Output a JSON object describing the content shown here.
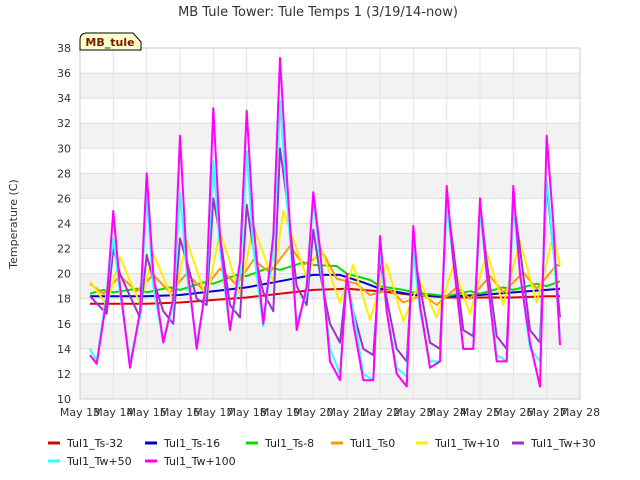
{
  "chart_data": {
    "type": "line",
    "title": "MB Tule Tower: Tule Temps 1 (3/19/14-now)",
    "ylabel": "Temperature (C)",
    "xlabel": "",
    "station_tag": "MB_tule",
    "ylim": [
      10,
      38
    ],
    "yticks": [
      10,
      12,
      14,
      16,
      18,
      20,
      22,
      24,
      26,
      28,
      30,
      32,
      34,
      36,
      38
    ],
    "xlim": [
      13,
      28
    ],
    "xticks": [
      "May 13",
      "May 14",
      "May 15",
      "May 16",
      "May 17",
      "May 18",
      "May 19",
      "May 20",
      "May 21",
      "May 22",
      "May 23",
      "May 24",
      "May 25",
      "May 26",
      "May 27",
      "May 28"
    ],
    "grid": true,
    "banded_background": true,
    "legend_position": "bottom",
    "series": [
      {
        "name": "Tul1_Ts-32",
        "color": "#dd0000",
        "x": [
          13.3,
          14,
          15,
          16,
          17,
          18,
          19,
          20,
          21,
          22,
          23,
          24,
          25,
          26,
          27,
          27.4
        ],
        "y": [
          17.6,
          17.6,
          17.6,
          17.7,
          17.9,
          18.1,
          18.4,
          18.7,
          18.8,
          18.6,
          18.3,
          18.1,
          18.1,
          18.1,
          18.2,
          18.2
        ]
      },
      {
        "name": "Tul1_Ts-16",
        "color": "#0000cc",
        "x": [
          13.3,
          14,
          15,
          16,
          17,
          18,
          19,
          20,
          20.8,
          21.5,
          22,
          23,
          24,
          25,
          26,
          27,
          27.4
        ],
        "y": [
          18.2,
          18.2,
          18.2,
          18.3,
          18.6,
          18.9,
          19.4,
          19.9,
          19.9,
          19.3,
          18.8,
          18.3,
          18.2,
          18.3,
          18.5,
          18.7,
          18.8
        ]
      },
      {
        "name": "Tul1_Ts-8",
        "color": "#00dd00",
        "x": [
          13.3,
          13.7,
          14,
          14.7,
          15,
          15.7,
          16,
          16.7,
          17,
          17.7,
          18,
          18.7,
          19,
          19.7,
          20,
          20.7,
          21,
          21.7,
          22,
          22.7,
          23,
          23.7,
          24,
          24.7,
          25,
          25.7,
          26,
          26.7,
          27,
          27.4
        ],
        "y": [
          18.4,
          18.7,
          18.5,
          18.8,
          18.5,
          18.9,
          18.7,
          19.3,
          19.2,
          19.9,
          19.8,
          20.5,
          20.3,
          20.9,
          20.7,
          20.6,
          20.0,
          19.5,
          19.0,
          18.7,
          18.5,
          18.3,
          18.2,
          18.6,
          18.4,
          18.9,
          18.7,
          19.2,
          19.0,
          19.4
        ]
      },
      {
        "name": "Tul1_Ts0",
        "color": "#ff9900",
        "x": [
          13.3,
          13.7,
          14.2,
          14.7,
          15.2,
          15.7,
          16.2,
          16.7,
          17.2,
          17.7,
          18.2,
          18.7,
          19.3,
          19.7,
          20.3,
          20.7,
          21.3,
          21.7,
          22.3,
          22.7,
          23.3,
          23.7,
          24.3,
          24.7,
          25.3,
          25.7,
          26.3,
          26.7,
          27.3,
          27.4
        ],
        "y": [
          19.2,
          18.4,
          19.8,
          18.6,
          19.9,
          18.5,
          20.0,
          18.7,
          20.4,
          19.1,
          21.1,
          20.1,
          22.2,
          20.7,
          21.6,
          19.6,
          19.2,
          18.3,
          18.7,
          17.7,
          18.3,
          17.5,
          18.9,
          18.0,
          19.8,
          18.5,
          20.1,
          18.8,
          20.7,
          20.6
        ]
      },
      {
        "name": "Tul1_Tw+10",
        "color": "#ffee00",
        "x": [
          13.3,
          13.8,
          14.2,
          14.8,
          15.2,
          15.8,
          16.2,
          16.8,
          17.2,
          17.8,
          18.2,
          18.8,
          19.1,
          19.8,
          20.2,
          20.8,
          21.2,
          21.7,
          22.2,
          22.7,
          23.2,
          23.7,
          24.2,
          24.7,
          25.2,
          25.7,
          26.2,
          26.7,
          27.2,
          27.4
        ],
        "y": [
          19.4,
          17.5,
          21.3,
          17.6,
          21.6,
          17.8,
          22.6,
          18.0,
          23.4,
          18.3,
          23.8,
          19.4,
          25.0,
          19.7,
          22.2,
          17.7,
          20.7,
          16.3,
          20.8,
          16.2,
          19.4,
          16.5,
          20.6,
          16.8,
          21.7,
          17.5,
          22.6,
          17.7,
          23.0,
          20.7
        ]
      },
      {
        "name": "Tul1_Tw+30",
        "color": "#9933cc",
        "x": [
          13.3,
          13.8,
          14.0,
          14.2,
          14.5,
          14.8,
          15.0,
          15.2,
          15.5,
          15.8,
          16.0,
          16.2,
          16.5,
          16.8,
          17.0,
          17.2,
          17.5,
          17.8,
          18.0,
          18.2,
          18.5,
          18.8,
          19.0,
          19.2,
          19.5,
          19.8,
          20.0,
          20.2,
          20.5,
          20.8,
          21.0,
          21.2,
          21.5,
          21.8,
          22.0,
          22.2,
          22.5,
          22.8,
          23.0,
          23.2,
          23.5,
          23.8,
          24.0,
          24.2,
          24.5,
          24.8,
          25.0,
          25.2,
          25.5,
          25.8,
          26.0,
          26.2,
          26.5,
          26.8,
          27.0,
          27.2,
          27.4
        ],
        "y": [
          18.2,
          16.8,
          22.0,
          20.0,
          18.2,
          16.5,
          21.5,
          19.5,
          17.0,
          16.0,
          22.8,
          21.0,
          18.0,
          17.5,
          26.0,
          23.0,
          17.5,
          16.5,
          25.5,
          22.0,
          18.5,
          17.0,
          30.0,
          26.0,
          19.0,
          17.5,
          23.5,
          20.0,
          16.0,
          14.5,
          19.5,
          17.0,
          14.0,
          13.5,
          21.0,
          18.0,
          14.0,
          13.0,
          22.0,
          19.0,
          14.5,
          14.0,
          26.0,
          22.0,
          15.5,
          15.0,
          25.5,
          21.0,
          15.0,
          14.0,
          26.0,
          22.0,
          15.5,
          14.5,
          27.0,
          22.0,
          16.5
        ]
      },
      {
        "name": "Tul1_Tw+50",
        "color": "#33ffff",
        "x": [
          13.3,
          13.5,
          13.8,
          14.0,
          14.2,
          14.5,
          14.8,
          15.0,
          15.2,
          15.5,
          15.8,
          16.0,
          16.2,
          16.5,
          16.8,
          17.0,
          17.2,
          17.5,
          17.8,
          18.0,
          18.2,
          18.5,
          18.8,
          19.0,
          19.2,
          19.5,
          19.8,
          20.0,
          20.2,
          20.5,
          20.8,
          21.0,
          21.2,
          21.5,
          21.8,
          22.0,
          22.2,
          22.5,
          22.8,
          23.0,
          23.2,
          23.5,
          23.8,
          24.0,
          24.2,
          24.5,
          24.8,
          25.0,
          25.2,
          25.5,
          25.8,
          26.0,
          26.2,
          26.5,
          26.8,
          27.0,
          27.2,
          27.4
        ],
        "y": [
          14.0,
          13.0,
          18.5,
          22.8,
          18.5,
          13.0,
          16.5,
          26.2,
          19.0,
          14.5,
          17.5,
          26.5,
          20.0,
          14.5,
          19.0,
          29.0,
          22.0,
          15.5,
          20.0,
          29.8,
          22.0,
          15.8,
          22.0,
          33.8,
          26.0,
          16.0,
          18.5,
          26.0,
          21.0,
          14.0,
          12.0,
          19.5,
          17.0,
          12.0,
          11.5,
          22.0,
          17.0,
          12.5,
          11.8,
          22.0,
          17.0,
          13.0,
          13.0,
          25.5,
          21.0,
          14.0,
          14.0,
          25.0,
          20.0,
          13.5,
          13.0,
          25.5,
          20.0,
          14.0,
          13.0,
          27.5,
          22.0,
          15.0
        ]
      },
      {
        "name": "Tul1_Tw+100",
        "color": "#ff00ff",
        "x": [
          13.3,
          13.5,
          13.8,
          14.0,
          14.2,
          14.5,
          14.8,
          15.0,
          15.2,
          15.5,
          15.8,
          16.0,
          16.2,
          16.5,
          16.8,
          17.0,
          17.2,
          17.5,
          17.8,
          18.0,
          18.2,
          18.5,
          18.8,
          19.0,
          19.2,
          19.5,
          19.8,
          20.0,
          20.2,
          20.5,
          20.8,
          21.0,
          21.2,
          21.5,
          21.8,
          22.0,
          22.2,
          22.5,
          22.8,
          23.0,
          23.2,
          23.5,
          23.8,
          24.0,
          24.2,
          24.5,
          24.8,
          25.0,
          25.2,
          25.5,
          25.8,
          26.0,
          26.2,
          26.5,
          26.8,
          27.0,
          27.2,
          27.4
        ],
        "y": [
          13.5,
          12.8,
          18.0,
          25.0,
          19.0,
          12.5,
          17.0,
          28.0,
          20.0,
          14.5,
          18.0,
          31.0,
          21.0,
          14.0,
          19.5,
          33.2,
          23.0,
          15.5,
          21.0,
          33.0,
          24.0,
          16.0,
          23.0,
          37.2,
          28.0,
          15.5,
          19.0,
          26.5,
          22.0,
          13.0,
          11.5,
          20.0,
          16.0,
          11.5,
          11.5,
          23.0,
          17.0,
          12.0,
          11.0,
          23.8,
          17.5,
          12.5,
          13.0,
          27.0,
          21.0,
          14.0,
          14.0,
          26.0,
          20.0,
          13.0,
          13.0,
          27.0,
          20.0,
          14.5,
          11.0,
          31.0,
          24.0,
          14.3
        ]
      }
    ]
  }
}
